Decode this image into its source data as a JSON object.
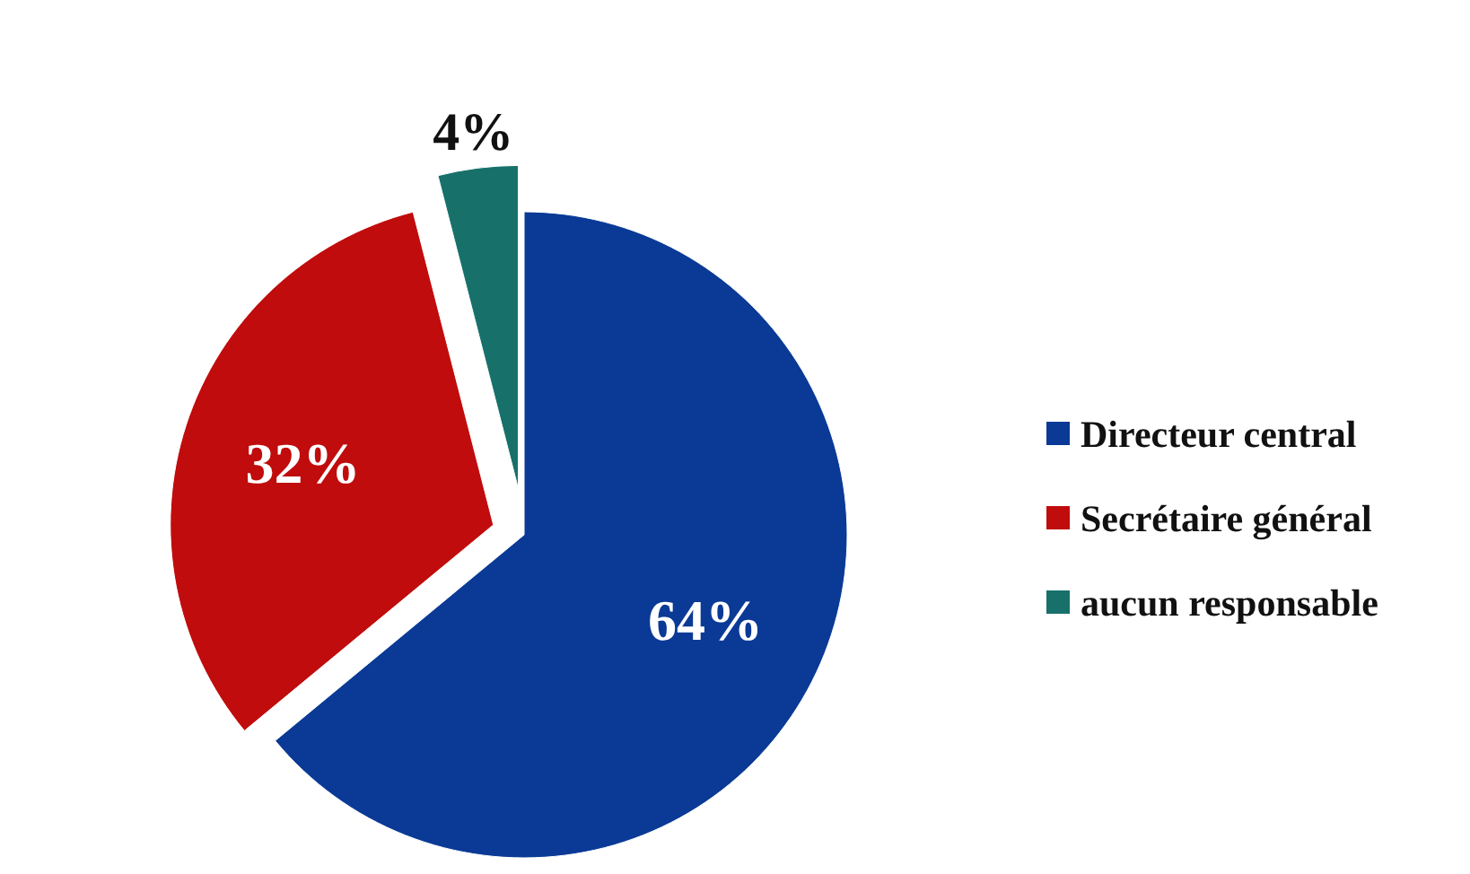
{
  "chart_data": {
    "type": "pie",
    "categories": [
      "Directeur central",
      "Secrétaire général",
      "aucun responsable"
    ],
    "values": [
      64,
      32,
      4
    ],
    "colors": [
      "#0a3a96",
      "#c00c0c",
      "#17716a"
    ],
    "value_labels": [
      "64%",
      "32%",
      "4%"
    ],
    "legend": "right"
  }
}
